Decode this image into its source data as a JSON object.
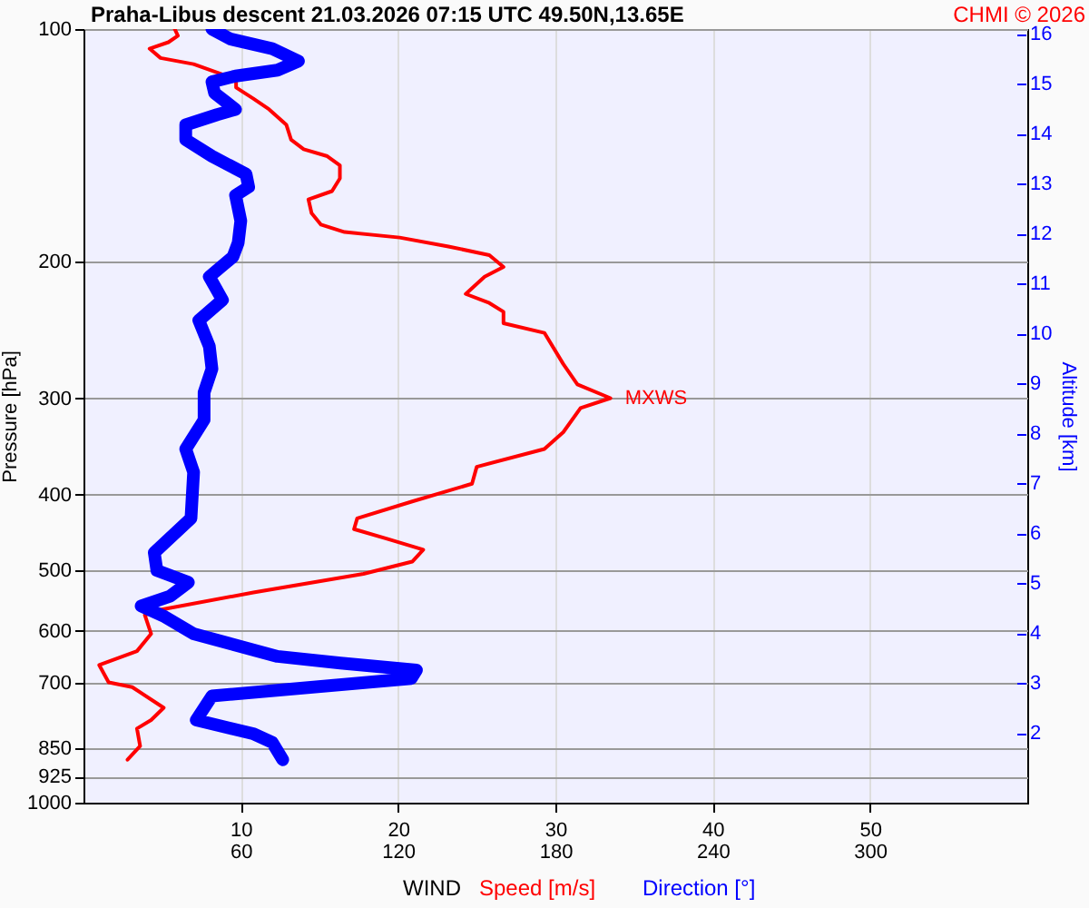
{
  "chart_data": {
    "type": "line",
    "orientation": "horizontal",
    "title": "Praha-Libus   descent   21.03.2026 07:15 UTC  49.50N,13.65E",
    "xlabel": "WIND",
    "ylabel": "Pressure [hPa]",
    "y2label": "Altitude [km]",
    "annotations": [
      "CHMI © 2026",
      {
        "text": "MXWS",
        "x": 33.5,
        "y": 300
      }
    ],
    "legend": "bottom",
    "grid": true,
    "log": "y",
    "marker": "none",
    "line_style": "solid",
    "xlim": [
      0,
      60
    ],
    "xticks": [
      10,
      20,
      30,
      40,
      50
    ],
    "x2lim": [
      0,
      360
    ],
    "x2ticks": [
      60,
      120,
      180,
      240,
      300
    ],
    "ylim": [
      1000,
      100
    ],
    "yticks": [
      100,
      200,
      300,
      400,
      500,
      600,
      700,
      850,
      925,
      1000
    ],
    "y2lim": [
      0.6,
      16.1
    ],
    "y2ticks": [
      2,
      3,
      4,
      5,
      6,
      7,
      8,
      9,
      10,
      11,
      12,
      13,
      14,
      15,
      16
    ],
    "series": [
      {
        "name": "Speed [m/s]",
        "color": "#ff0000",
        "values": [
          5.8,
          6.0,
          5.4,
          4.2,
          4.9,
          7.0,
          9.1,
          9.7,
          9.7,
          10.8,
          11.8,
          12.9,
          13.2,
          14.0,
          15.5,
          16.3,
          16.3,
          15.8,
          14.3,
          14.5,
          15.1,
          16.6,
          20.1,
          23.2,
          25.8,
          26.7,
          25.5,
          24.3,
          25.8,
          26.7,
          26.7,
          29.3,
          30.5,
          31.4,
          33.5,
          31.6,
          30.5,
          29.3,
          25.0,
          24.7,
          20.9,
          17.4,
          17.2,
          19.3,
          21.6,
          20.9,
          17.8,
          10.8,
          4.9,
          3.9,
          4.3,
          3.4,
          1.0,
          1.6,
          3.1,
          5.1,
          4.3,
          3.4,
          3.6,
          2.8
        ],
        "x": [
          100,
          102,
          104,
          106,
          109,
          111,
          115,
          117,
          119,
          123,
          127,
          133,
          139,
          143,
          146,
          150,
          156,
          162,
          166,
          173,
          179,
          183,
          186,
          191,
          196,
          203,
          209,
          220,
          226,
          232,
          240,
          247,
          271,
          288,
          300,
          309,
          332,
          349,
          368,
          387,
          408,
          429,
          443,
          456,
          471,
          488,
          506,
          535,
          563,
          572,
          605,
          637,
          664,
          699,
          709,
          754,
          782,
          802,
          845,
          880
        ]
      },
      {
        "name": "Direction [°]",
        "color": "#0000ff",
        "axis": "x2",
        "values": [
          49,
          56,
          72,
          82,
          74,
          58,
          49,
          50,
          58,
          51,
          39,
          39,
          49,
          62,
          63,
          58,
          60,
          59,
          57,
          48,
          53,
          44,
          48,
          49,
          46,
          46,
          39,
          42,
          41,
          27,
          28,
          40,
          33,
          22,
          31,
          42,
          74,
          98,
          127,
          125,
          49,
          43,
          65,
          72,
          76
        ],
        "x": [
          100,
          103,
          106,
          110,
          113,
          115,
          117,
          121,
          127,
          129,
          133,
          139,
          146,
          154,
          160,
          164,
          177,
          189,
          197,
          209,
          224,
          238,
          257,
          275,
          295,
          320,
          349,
          374,
          429,
          475,
          501,
          519,
          541,
          557,
          575,
          605,
          647,
          660,
          674,
          691,
          728,
          782,
          815,
          836,
          880
        ]
      }
    ]
  }
}
